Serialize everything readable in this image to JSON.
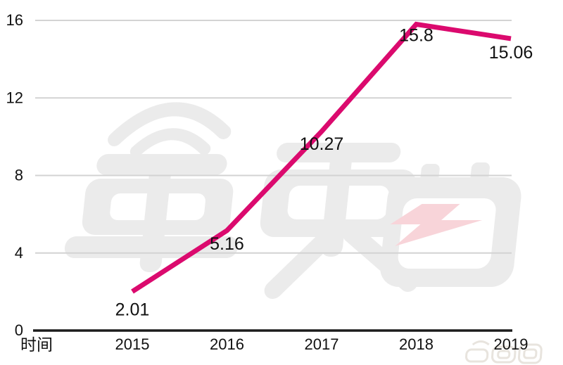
{
  "chart_data": {
    "type": "line",
    "categories": [
      "2015",
      "2016",
      "2017",
      "2018",
      "2019"
    ],
    "values": [
      2.01,
      5.16,
      10.27,
      15.8,
      15.06
    ],
    "data_labels": [
      "2.01",
      "5.16",
      "10.27",
      "15.8",
      "15.06"
    ],
    "xlabel": "时间",
    "ylabel": "",
    "yticks": [
      "0",
      "4",
      "8",
      "12",
      "16"
    ],
    "ylim": [
      0,
      16
    ],
    "grid": true,
    "legend": false,
    "line_color": "#DB0A6E",
    "label_color": "#111111",
    "grid_color": "#D3D3D3",
    "axis_color": "#1C1C1C"
  },
  "watermarks": {
    "center": {
      "icon": "chedongxi-logo-watermark",
      "text": "車東西",
      "color": "#EBEBEB",
      "bolt_color": "#F8D4D9"
    },
    "corner": {
      "icon": "chedongxi-logo-watermark-small",
      "text": "車東西",
      "color": "#E8E4DE"
    }
  }
}
